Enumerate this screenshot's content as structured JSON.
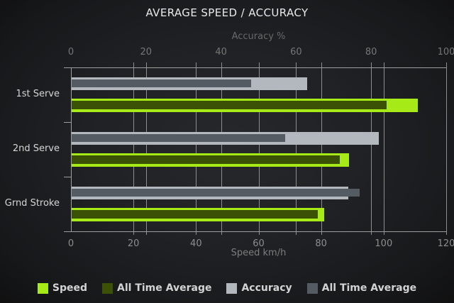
{
  "chart_data": {
    "type": "bar",
    "orientation": "horizontal",
    "title": "AVERAGE SPEED / ACCURACY",
    "categories": [
      "1st Serve",
      "2nd Serve",
      "Grnd Stroke"
    ],
    "top_axis": {
      "label": "Accuracy %",
      "min": 0,
      "max": 100,
      "ticks": [
        0,
        20,
        40,
        60,
        80,
        100
      ]
    },
    "bottom_axis": {
      "label": "Speed km/h",
      "min": 0,
      "max": 120,
      "ticks": [
        0,
        20,
        40,
        60,
        80,
        100,
        120
      ]
    },
    "grid": true,
    "legend_position": "bottom",
    "series": [
      {
        "id": "accuracy",
        "name": "Accuracy",
        "axis": "top",
        "color": "#b2b8bd",
        "values": [
          63,
          82,
          74
        ]
      },
      {
        "id": "accuracy_avg",
        "name": "All Time Average",
        "axis": "top",
        "color": "#555b62",
        "values": [
          48,
          57,
          77
        ]
      },
      {
        "id": "speed",
        "name": "Speed",
        "axis": "bottom",
        "color": "#a6ea18",
        "values": [
          111,
          89,
          81
        ]
      },
      {
        "id": "speed_avg",
        "name": "All Time Average",
        "axis": "bottom",
        "color": "#3a5106",
        "values": [
          101,
          86,
          79
        ]
      }
    ],
    "legend": [
      {
        "label": "Speed",
        "color": "#a6ea18"
      },
      {
        "label": "All Time Average",
        "color": "#3a5106"
      },
      {
        "label": "Accuracy",
        "color": "#b2b8bd"
      },
      {
        "label": "All Time Average",
        "color": "#555b62"
      }
    ]
  },
  "colors": {
    "background_center": "#27282b",
    "background_edge": "#101011",
    "gridline": "#8d8d8d",
    "axis": "#9d9d9d",
    "title_text": "#e9e9e9",
    "tick_text": "#8d8d8d",
    "category_text": "#d6d6d6",
    "legend_text": "#d3d3d3"
  }
}
